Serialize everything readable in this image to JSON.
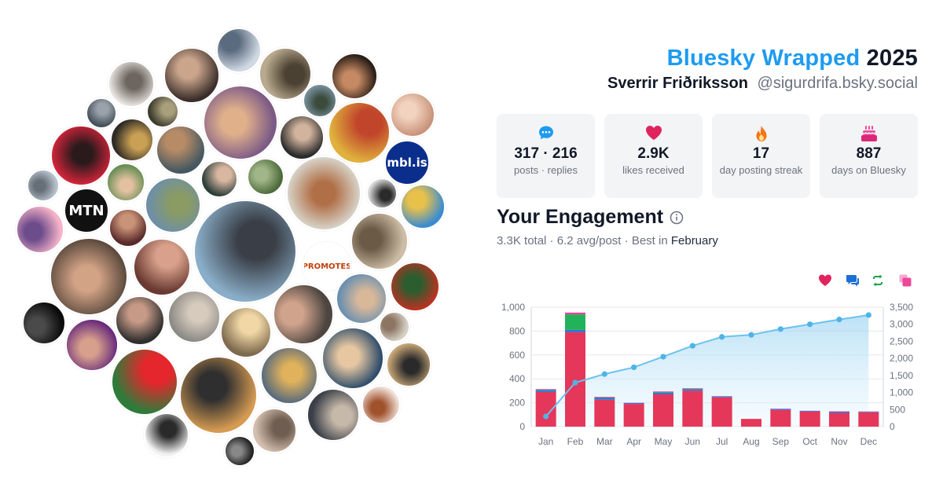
{
  "header": {
    "brand": "Bluesky Wrapped",
    "year": "2025",
    "display_name": "Sverrir Friðriksson",
    "handle": "@sigurdrifa.bsky.social"
  },
  "stats": [
    {
      "icon": "speech-bubble-icon",
      "value": "317 · 216",
      "label": "posts · replies",
      "color": "#1d9bf0"
    },
    {
      "icon": "heart-icon",
      "value": "2.9K",
      "label": "likes received",
      "color": "#e0245e"
    },
    {
      "icon": "flame-icon",
      "value": "17",
      "label": "day posting streak",
      "color": "#f97316"
    },
    {
      "icon": "cake-icon",
      "value": "887",
      "label": "days on Bluesky",
      "color": "#ec4899"
    }
  ],
  "engagement": {
    "title": "Your Engagement",
    "total": "3.3K total",
    "avg": "6.2 avg/post",
    "best_prefix": "Best in",
    "best_month": "February",
    "sep": " · "
  },
  "legend_icons": [
    {
      "name": "likes-heart-icon",
      "color": "#e0245e"
    },
    {
      "name": "replies-bubble-icon",
      "color": "#1d6fd8"
    },
    {
      "name": "reposts-arrows-icon",
      "color": "#16a34a"
    },
    {
      "name": "quotes-icon",
      "color": "#ec4899"
    }
  ],
  "chart_data": {
    "type": "bar",
    "categories": [
      "Jan",
      "Feb",
      "Mar",
      "Apr",
      "May",
      "Jun",
      "Jul",
      "Aug",
      "Sep",
      "Oct",
      "Nov",
      "Dec"
    ],
    "series": [
      {
        "values": [
          290,
          790,
          225,
          190,
          270,
          300,
          245,
          65,
          140,
          125,
          115,
          120
        ],
        "color": "#e5375a"
      },
      {
        "values": [
          15,
          20,
          15,
          8,
          15,
          12,
          8,
          0,
          8,
          6,
          10,
          5
        ],
        "color": "#3b6fd4"
      },
      {
        "values": [
          5,
          130,
          5,
          0,
          5,
          5,
          0,
          0,
          0,
          0,
          0,
          0
        ],
        "color": "#22b35a"
      },
      {
        "values": [
          5,
          15,
          5,
          2,
          5,
          5,
          2,
          0,
          2,
          2,
          3,
          2
        ],
        "color": "#e83fa1"
      }
    ],
    "cumulative": {
      "values": [
        300,
        1290,
        1540,
        1740,
        2050,
        2370,
        2630,
        2690,
        2860,
        3000,
        3140,
        3270
      ],
      "color": "#6cc2ee"
    },
    "left_axis": {
      "ylim": [
        0,
        1000
      ],
      "ticks": [
        "0",
        "200",
        "400",
        "600",
        "800",
        "1,000"
      ]
    },
    "right_axis": {
      "ylim": [
        0,
        3500
      ],
      "ticks": [
        "0",
        "500",
        "1,000",
        "1,500",
        "2,000",
        "2,500",
        "3,000",
        "3,500"
      ]
    },
    "grid": true
  }
}
